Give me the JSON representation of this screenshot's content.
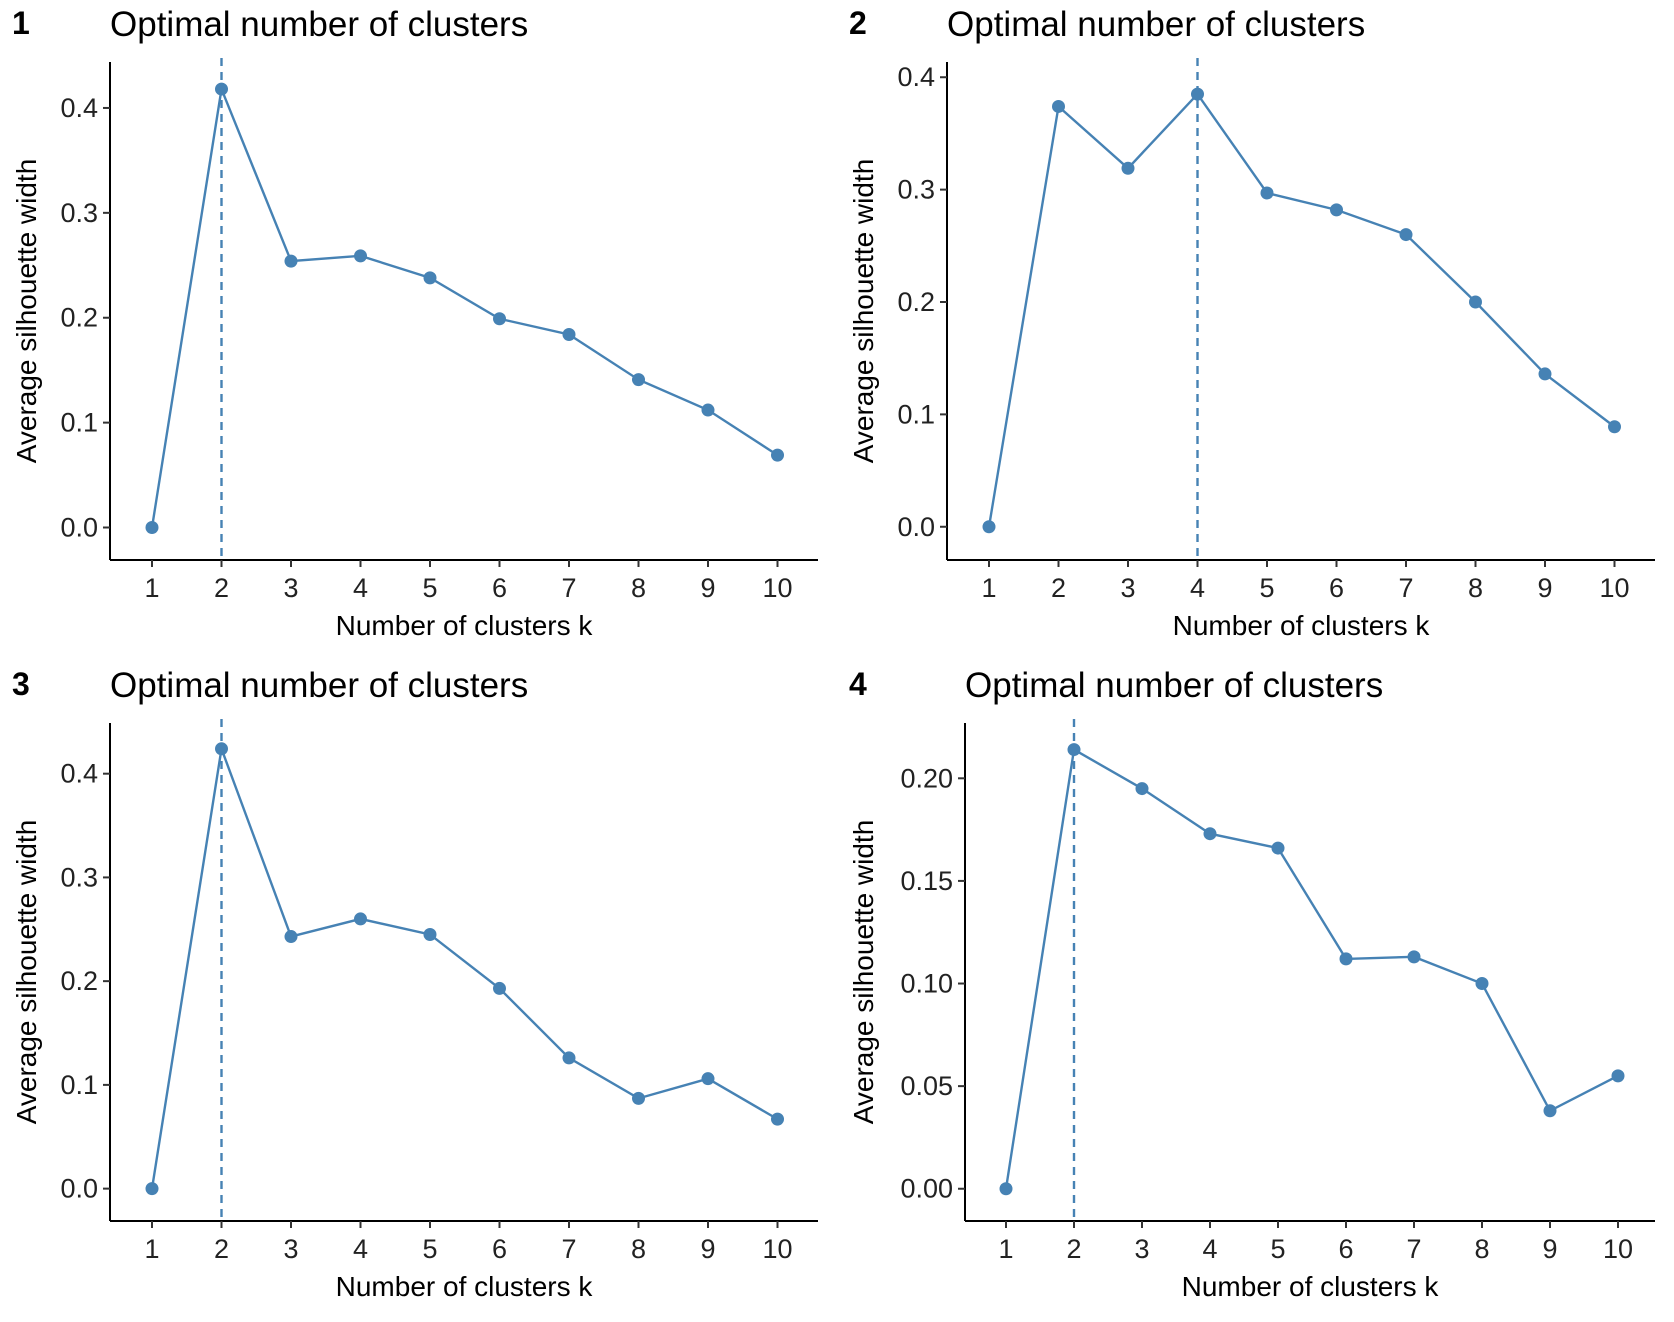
{
  "colors": {
    "series": "#4682B4",
    "axis": "#000000",
    "text": "#000000"
  },
  "chart_data": [
    {
      "type": "line",
      "panel_label": "1",
      "title": "Optimal number of clusters",
      "xlabel": "Number of clusters k",
      "ylabel": "Average silhouette width",
      "categories": [
        "1",
        "2",
        "3",
        "4",
        "5",
        "6",
        "7",
        "8",
        "9",
        "10"
      ],
      "values": [
        0.0,
        0.418,
        0.254,
        0.259,
        0.238,
        0.199,
        0.184,
        0.141,
        0.112,
        0.069
      ],
      "ylim": [
        -0.01,
        0.44
      ],
      "yticks": [
        0.0,
        0.1,
        0.2,
        0.3,
        0.4
      ],
      "ytick_labels": [
        "0.0",
        "0.1",
        "0.2",
        "0.3",
        "0.4"
      ],
      "optimal_k": "2",
      "grid": false
    },
    {
      "type": "line",
      "panel_label": "2",
      "title": "Optimal number of clusters",
      "xlabel": "Number of clusters k",
      "ylabel": "Average silhouette width",
      "categories": [
        "1",
        "2",
        "3",
        "4",
        "5",
        "6",
        "7",
        "8",
        "9",
        "10"
      ],
      "values": [
        0.0,
        0.374,
        0.319,
        0.385,
        0.297,
        0.282,
        0.26,
        0.2,
        0.136,
        0.089
      ],
      "ylim": [
        -0.01,
        0.41
      ],
      "yticks": [
        0.0,
        0.1,
        0.2,
        0.3,
        0.4
      ],
      "ytick_labels": [
        "0.0",
        "0.1",
        "0.2",
        "0.3",
        "0.4"
      ],
      "optimal_k": "4",
      "grid": false
    },
    {
      "type": "line",
      "panel_label": "3",
      "title": "Optimal number of clusters",
      "xlabel": "Number of clusters k",
      "ylabel": "Average silhouette width",
      "categories": [
        "1",
        "2",
        "3",
        "4",
        "5",
        "6",
        "7",
        "8",
        "9",
        "10"
      ],
      "values": [
        0.0,
        0.424,
        0.243,
        0.26,
        0.245,
        0.193,
        0.126,
        0.087,
        0.106,
        0.067
      ],
      "ylim": [
        -0.01,
        0.445
      ],
      "yticks": [
        0.0,
        0.1,
        0.2,
        0.3,
        0.4
      ],
      "ytick_labels": [
        "0.0",
        "0.1",
        "0.2",
        "0.3",
        "0.4"
      ],
      "optimal_k": "2",
      "grid": false
    },
    {
      "type": "line",
      "panel_label": "4",
      "title": "Optimal number of clusters",
      "xlabel": "Number of clusters k",
      "ylabel": "Average silhouette width",
      "categories": [
        "1",
        "2",
        "3",
        "4",
        "5",
        "6",
        "7",
        "8",
        "9",
        "10"
      ],
      "values": [
        0.0,
        0.214,
        0.195,
        0.173,
        0.166,
        0.112,
        0.113,
        0.1,
        0.038,
        0.055
      ],
      "ylim": [
        -0.005,
        0.225
      ],
      "yticks": [
        0.0,
        0.05,
        0.1,
        0.15,
        0.2
      ],
      "ytick_labels": [
        "0.00",
        "0.05",
        "0.10",
        "0.15",
        "0.20"
      ],
      "optimal_k": "2",
      "grid": false
    }
  ]
}
